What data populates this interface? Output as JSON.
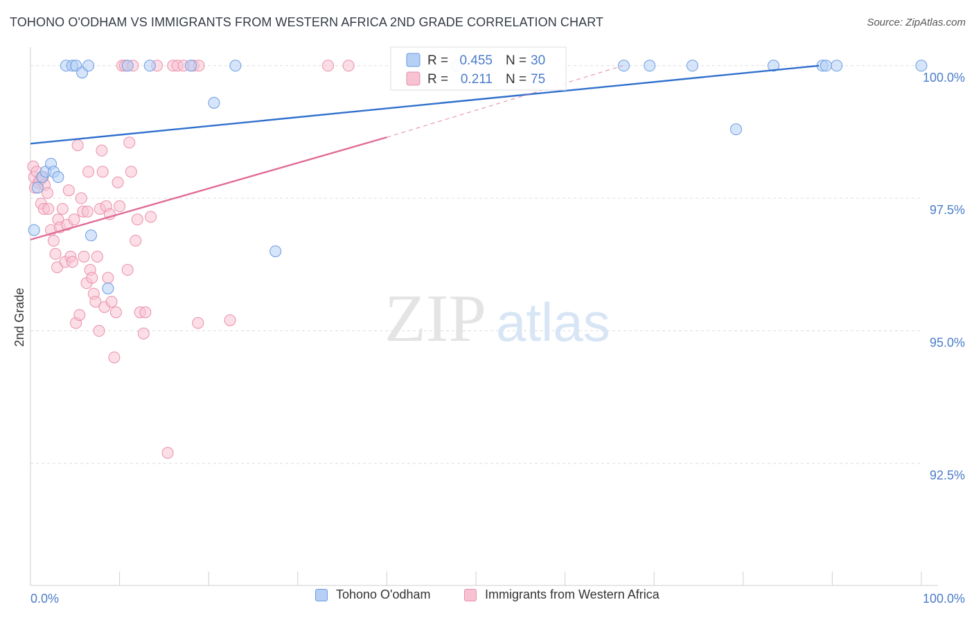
{
  "header": {
    "title": "TOHONO O'ODHAM VS IMMIGRANTS FROM WESTERN AFRICA 2ND GRADE CORRELATION CHART",
    "source": "Source: ZipAtlas.com"
  },
  "watermark": {
    "zip": "ZIP",
    "atlas": "atlas"
  },
  "colors": {
    "blue_fill": "#b5cff5",
    "blue_stroke": "#6a9be0",
    "blue_line": "#2f6fce",
    "pink_fill": "#f7c2d2",
    "pink_stroke": "#ea8fab",
    "pink_line": "#e06b97",
    "tick_label": "#4a7cc9"
  },
  "chart_data": {
    "type": "scatter",
    "title": "TOHONO O'ODHAM VS IMMIGRANTS FROM WESTERN AFRICA 2ND GRADE CORRELATION CHART",
    "xlabel": "",
    "ylabel": "2nd Grade",
    "xlim": [
      0,
      100
    ],
    "ylim": [
      90.2,
      100.35
    ],
    "x_tick_labels": [
      "0.0%",
      "100.0%"
    ],
    "y_ticks": [
      100.0,
      97.5,
      95.0,
      92.5
    ],
    "y_tick_labels": [
      "100.0%",
      "97.5%",
      "95.0%",
      "92.5%"
    ],
    "grid": true,
    "legend_position": "top-center",
    "legend": [
      {
        "r_label": "R =",
        "r_value": "0.455",
        "n_label": "N =",
        "n_value": "30"
      },
      {
        "r_label": "R =",
        "r_value": "0.211",
        "n_label": "N =",
        "n_value": "75"
      }
    ],
    "series": [
      {
        "name": "Tohono O'odham",
        "points": [
          [
            0.4,
            96.9
          ],
          [
            0.8,
            97.7
          ],
          [
            1.3,
            97.9
          ],
          [
            1.7,
            98.0
          ],
          [
            2.3,
            98.15
          ],
          [
            2.6,
            98.0
          ],
          [
            3.1,
            97.9
          ],
          [
            4.0,
            100.0
          ],
          [
            4.7,
            100.0
          ],
          [
            5.1,
            100.0
          ],
          [
            5.8,
            99.87
          ],
          [
            6.5,
            100.0
          ],
          [
            6.8,
            96.8
          ],
          [
            8.7,
            95.8
          ],
          [
            10.9,
            100.0
          ],
          [
            13.4,
            100.0
          ],
          [
            18.0,
            100.0
          ],
          [
            20.6,
            99.3
          ],
          [
            23.0,
            100.0
          ],
          [
            27.5,
            96.5
          ],
          [
            47.8,
            100.0
          ],
          [
            66.6,
            100.0
          ],
          [
            69.5,
            100.0
          ],
          [
            74.3,
            100.0
          ],
          [
            79.2,
            98.8
          ],
          [
            83.4,
            100.0
          ],
          [
            88.9,
            100.0
          ],
          [
            89.3,
            100.0
          ],
          [
            90.5,
            100.0
          ],
          [
            100.0,
            100.0
          ]
        ]
      },
      {
        "name": "Immigrants from Western Africa",
        "points": [
          [
            0.3,
            98.1
          ],
          [
            0.4,
            97.9
          ],
          [
            0.5,
            97.7
          ],
          [
            0.7,
            98.0
          ],
          [
            0.9,
            97.8
          ],
          [
            1.1,
            97.85
          ],
          [
            1.4,
            97.9
          ],
          [
            1.6,
            97.75
          ],
          [
            1.9,
            97.6
          ],
          [
            1.2,
            97.4
          ],
          [
            1.5,
            97.3
          ],
          [
            2.0,
            97.3
          ],
          [
            2.3,
            96.9
          ],
          [
            2.6,
            96.7
          ],
          [
            2.8,
            96.45
          ],
          [
            3.0,
            96.2
          ],
          [
            3.1,
            97.1
          ],
          [
            3.3,
            96.95
          ],
          [
            3.6,
            97.3
          ],
          [
            3.9,
            96.3
          ],
          [
            4.1,
            97.0
          ],
          [
            4.3,
            97.65
          ],
          [
            4.5,
            96.4
          ],
          [
            4.7,
            96.3
          ],
          [
            4.9,
            97.1
          ],
          [
            5.1,
            95.15
          ],
          [
            5.3,
            98.5
          ],
          [
            5.5,
            95.3
          ],
          [
            5.7,
            97.5
          ],
          [
            5.9,
            97.25
          ],
          [
            6.0,
            96.4
          ],
          [
            6.3,
            95.9
          ],
          [
            6.4,
            97.25
          ],
          [
            6.5,
            98.0
          ],
          [
            6.7,
            96.15
          ],
          [
            6.9,
            96.0
          ],
          [
            7.1,
            95.7
          ],
          [
            7.3,
            95.55
          ],
          [
            7.5,
            96.4
          ],
          [
            7.7,
            95.0
          ],
          [
            7.8,
            97.3
          ],
          [
            8.0,
            98.4
          ],
          [
            8.1,
            98.0
          ],
          [
            8.3,
            95.45
          ],
          [
            8.5,
            97.35
          ],
          [
            8.7,
            96.0
          ],
          [
            8.9,
            97.2
          ],
          [
            9.1,
            95.55
          ],
          [
            9.4,
            94.5
          ],
          [
            9.6,
            95.35
          ],
          [
            9.8,
            97.8
          ],
          [
            10.0,
            97.35
          ],
          [
            10.3,
            100.0
          ],
          [
            10.6,
            100.0
          ],
          [
            10.9,
            96.15
          ],
          [
            11.1,
            98.55
          ],
          [
            11.3,
            98.0
          ],
          [
            11.5,
            100.0
          ],
          [
            11.8,
            96.7
          ],
          [
            12.0,
            97.1
          ],
          [
            12.3,
            95.35
          ],
          [
            12.7,
            94.95
          ],
          [
            12.9,
            95.35
          ],
          [
            13.5,
            97.15
          ],
          [
            14.2,
            100.0
          ],
          [
            15.4,
            92.7
          ],
          [
            16.0,
            100.0
          ],
          [
            16.5,
            100.0
          ],
          [
            17.2,
            100.0
          ],
          [
            18.3,
            100.0
          ],
          [
            18.9,
            100.0
          ],
          [
            18.8,
            95.15
          ],
          [
            22.4,
            95.2
          ],
          [
            33.4,
            100.0
          ],
          [
            35.7,
            100.0
          ]
        ]
      }
    ],
    "trend_lines": [
      {
        "series": "Tohono O'odham",
        "x": [
          0,
          88.5
        ],
        "y": [
          98.53,
          100.0
        ],
        "style": "solid"
      },
      {
        "series": "Immigrants from Western Africa",
        "x": [
          0,
          40
        ],
        "y": [
          96.72,
          98.65
        ],
        "style": "solid"
      },
      {
        "series": "Immigrants from Western Africa",
        "x": [
          40,
          66.5
        ],
        "y": [
          98.65,
          100.0
        ],
        "style": "dashed"
      }
    ]
  }
}
